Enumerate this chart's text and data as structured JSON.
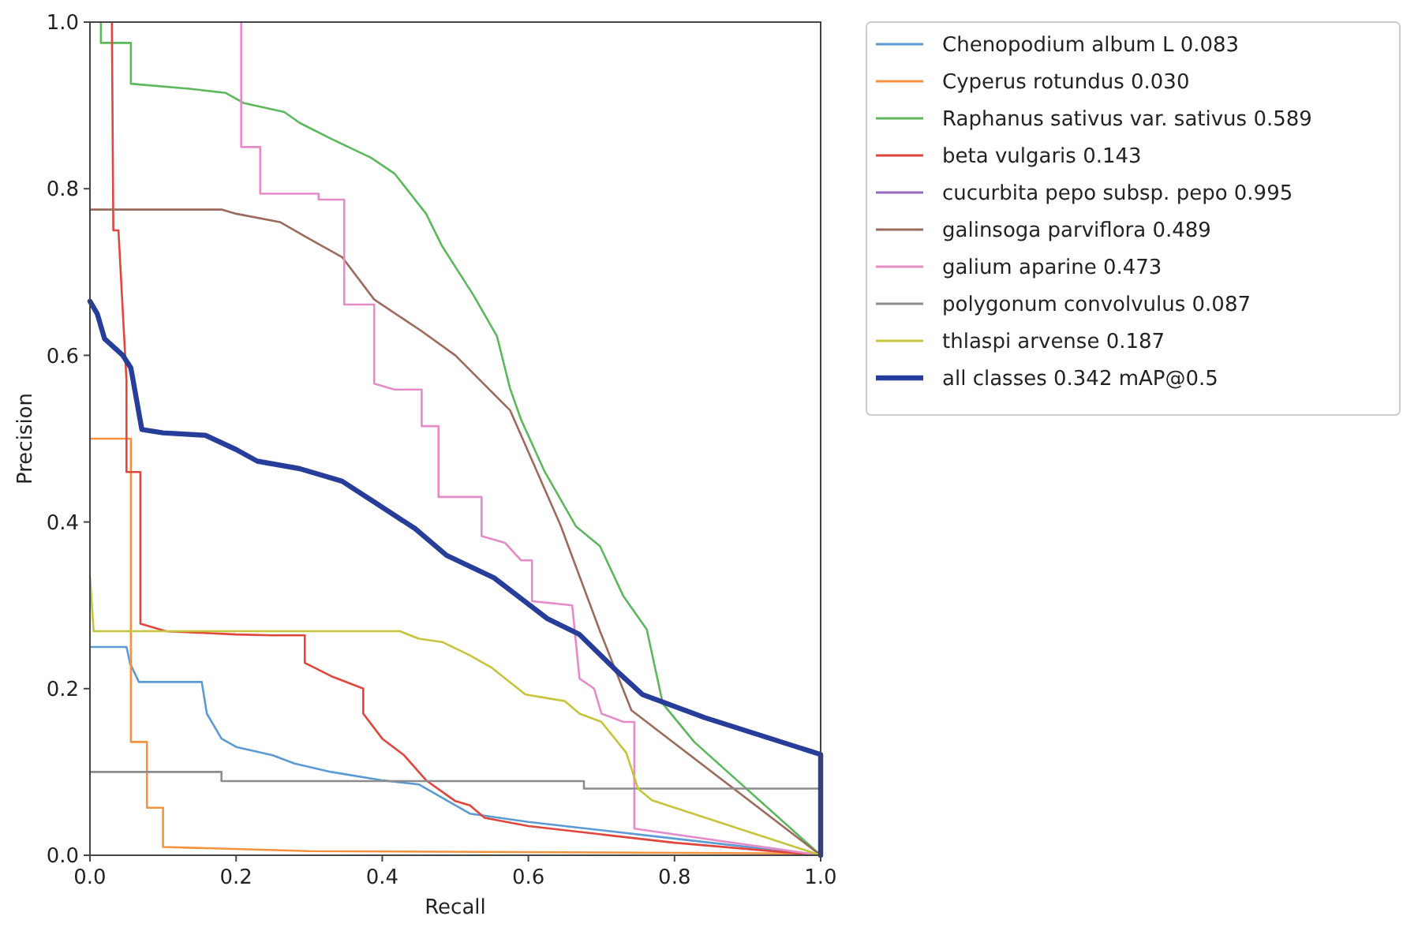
{
  "chart_data": {
    "type": "line",
    "xlabel": "Recall",
    "ylabel": "Precision",
    "xlim": [
      0,
      1
    ],
    "ylim": [
      0,
      1
    ],
    "xticks": [
      {
        "value": 0,
        "label": "0.0"
      },
      {
        "value": 0.2,
        "label": "0.2"
      },
      {
        "value": 0.4,
        "label": "0.4"
      },
      {
        "value": 0.6,
        "label": "0.6"
      },
      {
        "value": 0.8,
        "label": "0.8"
      },
      {
        "value": 1,
        "label": "1.0"
      }
    ],
    "yticks": [
      {
        "value": 0,
        "label": "0.0"
      },
      {
        "value": 0.2,
        "label": "0.2"
      },
      {
        "value": 0.4,
        "label": "0.4"
      },
      {
        "value": 0.6,
        "label": "0.6"
      },
      {
        "value": 0.8,
        "label": "0.8"
      },
      {
        "value": 1,
        "label": "1.0"
      }
    ],
    "legend": "top right",
    "grid": false,
    "marker": "none",
    "line_style": "solid",
    "series": [
      {
        "name": "Chenopodium album L 0.083",
        "color": "#5b9bd5",
        "x": [
          0,
          0.05,
          0.055,
          0.067,
          0.153,
          0.16,
          0.18,
          0.2,
          0.25,
          0.28,
          0.33,
          0.4,
          0.45,
          0.5,
          0.52,
          0.6,
          0.8,
          1
        ],
        "values": [
          0.25,
          0.25,
          0.23,
          0.208,
          0.208,
          0.17,
          0.14,
          0.13,
          0.12,
          0.11,
          0.1,
          0.09,
          0.085,
          0.06,
          0.05,
          0.04,
          0.02,
          0
        ]
      },
      {
        "name": "Cyperus rotundus 0.030",
        "color": "#f5923e",
        "x": [
          0,
          0.056,
          0.056,
          0.078,
          0.078,
          0.1,
          0.1,
          0.3,
          1
        ],
        "values": [
          0.5,
          0.5,
          0.136,
          0.136,
          0.057,
          0.057,
          0.01,
          0.005,
          0.002
        ]
      },
      {
        "name": "Raphanus sativus var. sativus 0.589",
        "color": "#5cb85c",
        "x": [
          0.015,
          0.015,
          0.056,
          0.056,
          0.136,
          0.186,
          0.21,
          0.266,
          0.287,
          0.33,
          0.385,
          0.417,
          0.46,
          0.482,
          0.525,
          0.557,
          0.575,
          0.59,
          0.622,
          0.665,
          0.698,
          0.73,
          0.762,
          0.784,
          0.827,
          1
        ],
        "values": [
          1,
          0.975,
          0.975,
          0.926,
          0.92,
          0.915,
          0.903,
          0.892,
          0.879,
          0.86,
          0.837,
          0.818,
          0.77,
          0.731,
          0.672,
          0.623,
          0.56,
          0.523,
          0.461,
          0.395,
          0.371,
          0.311,
          0.271,
          0.182,
          0.136,
          0
        ]
      },
      {
        "name": "beta vulgaris 0.143",
        "color": "#e0463c",
        "x": [
          0.03,
          0.032,
          0.039,
          0.05,
          0.05,
          0.069,
          0.069,
          0.104,
          0.2,
          0.25,
          0.294,
          0.294,
          0.33,
          0.374,
          0.374,
          0.4,
          0.43,
          0.46,
          0.5,
          0.52,
          0.54,
          0.6,
          0.8,
          1
        ],
        "values": [
          1,
          0.75,
          0.75,
          0.57,
          0.46,
          0.46,
          0.278,
          0.269,
          0.265,
          0.264,
          0.264,
          0.231,
          0.215,
          0.2,
          0.17,
          0.14,
          0.12,
          0.09,
          0.065,
          0.06,
          0.045,
          0.035,
          0.015,
          0
        ]
      },
      {
        "name": "cucurbita pepo subsp. pepo 0.995",
        "color": "#9467bd"
      },
      {
        "name": "galinsoga parviflora 0.489",
        "color": "#9c6b5e",
        "x": [
          0,
          0.18,
          0.2,
          0.26,
          0.3,
          0.345,
          0.389,
          0.454,
          0.5,
          0.575,
          0.644,
          0.698,
          0.741,
          1
        ],
        "values": [
          0.775,
          0.775,
          0.77,
          0.76,
          0.74,
          0.718,
          0.667,
          0.629,
          0.6,
          0.534,
          0.396,
          0.269,
          0.174,
          0
        ]
      },
      {
        "name": "galium aparine 0.473",
        "color": "#e68bc8",
        "x": [
          0.207,
          0.207,
          0.233,
          0.233,
          0.313,
          0.313,
          0.348,
          0.348,
          0.389,
          0.389,
          0.417,
          0.454,
          0.454,
          0.477,
          0.477,
          0.536,
          0.536,
          0.568,
          0.59,
          0.605,
          0.605,
          0.66,
          0.67,
          0.69,
          0.7,
          0.73,
          0.745,
          0.745,
          1
        ],
        "values": [
          1,
          0.85,
          0.85,
          0.794,
          0.794,
          0.787,
          0.787,
          0.661,
          0.661,
          0.566,
          0.559,
          0.559,
          0.515,
          0.515,
          0.43,
          0.43,
          0.383,
          0.375,
          0.354,
          0.354,
          0.305,
          0.3,
          0.212,
          0.2,
          0.17,
          0.16,
          0.16,
          0.032,
          0
        ]
      },
      {
        "name": "polygonum convolvulus 0.087",
        "color": "#8c8c8c",
        "x": [
          0,
          0.18,
          0.18,
          0.676,
          0.676,
          1
        ],
        "values": [
          0.1,
          0.1,
          0.089,
          0.089,
          0.08,
          0.08
        ]
      },
      {
        "name": "thlaspi arvense 0.187",
        "color": "#c5c43a",
        "x": [
          0,
          0.005,
          0.424,
          0.45,
          0.482,
          0.52,
          0.55,
          0.596,
          0.65,
          0.67,
          0.7,
          0.734,
          0.75,
          0.769,
          1
        ],
        "values": [
          0.335,
          0.269,
          0.269,
          0.26,
          0.256,
          0.24,
          0.225,
          0.193,
          0.185,
          0.17,
          0.16,
          0.123,
          0.08,
          0.066,
          0
        ]
      },
      {
        "name": "all classes 0.342 mAP@0.5",
        "color": "#263d9a",
        "x": [
          0,
          0.01,
          0.02,
          0.045,
          0.056,
          0.071,
          0.1,
          0.158,
          0.2,
          0.229,
          0.287,
          0.345,
          0.389,
          0.445,
          0.488,
          0.553,
          0.626,
          0.67,
          0.72,
          0.756,
          0.842,
          1,
          1
        ],
        "values": [
          0.665,
          0.65,
          0.62,
          0.6,
          0.585,
          0.511,
          0.507,
          0.504,
          0.487,
          0.473,
          0.464,
          0.449,
          0.424,
          0.392,
          0.36,
          0.333,
          0.284,
          0.265,
          0.222,
          0.193,
          0.165,
          0.121,
          0
        ]
      }
    ]
  }
}
